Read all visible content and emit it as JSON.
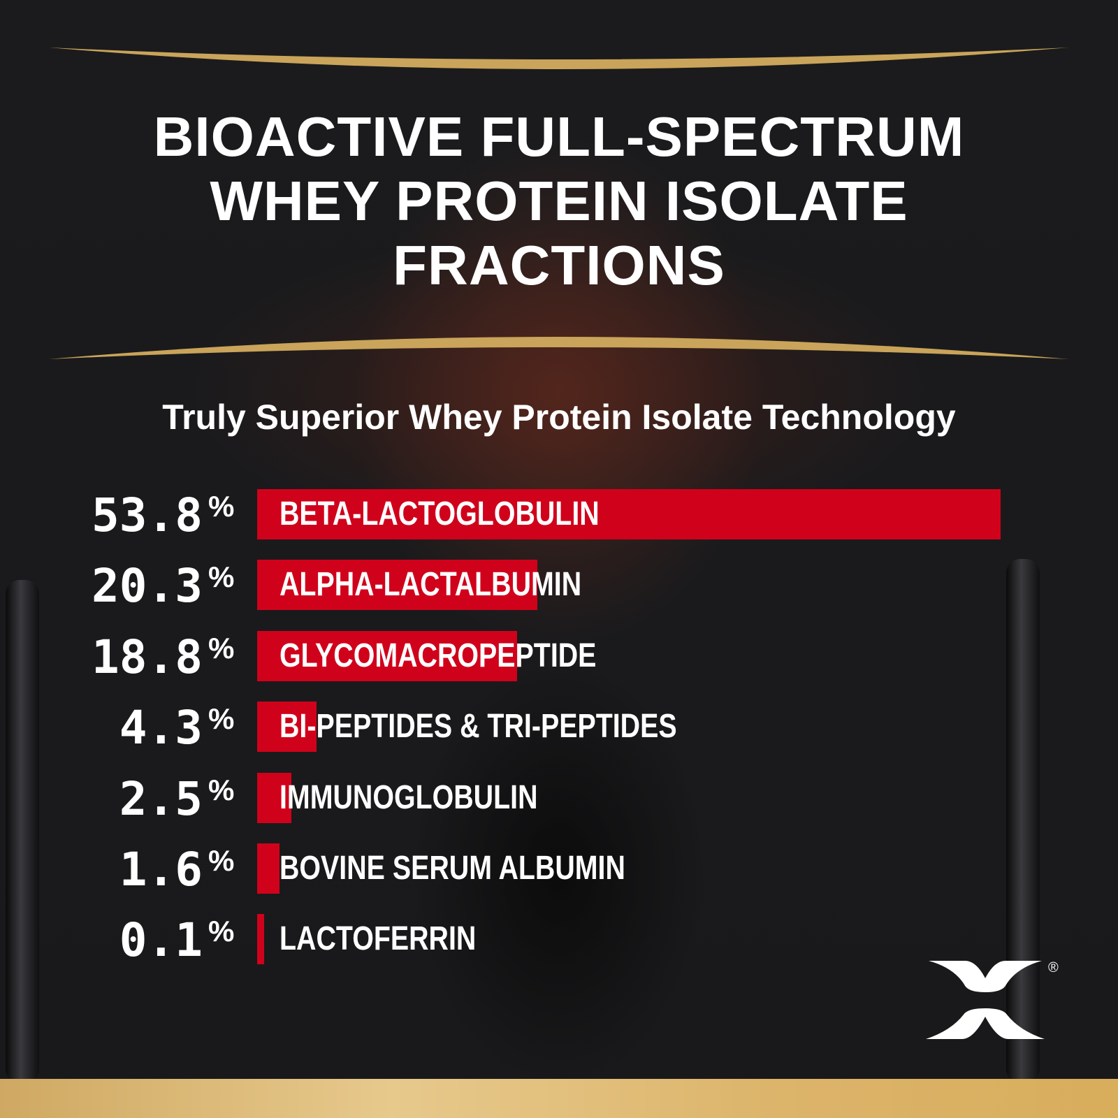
{
  "title_lines": [
    "BIOACTIVE FULL-SPECTRUM",
    "WHEY PROTEIN ISOLATE",
    "FRACTIONS"
  ],
  "subtitle": "Truly Superior Whey Protein Isolate Technology",
  "colors": {
    "bar": "#d0021b",
    "gold": "#d8b066",
    "text": "#ffffff",
    "background": "#1a1a1c"
  },
  "logo": {
    "icon": "x-logo",
    "registered": "®"
  },
  "chart_data": {
    "type": "bar",
    "orientation": "horizontal",
    "categories": [
      "BETA-LACTOGLOBULIN",
      "ALPHA-LACTALBUMIN",
      "GLYCOMACROPEPTIDE",
      "BI-PEPTIDES & TRI-PEPTIDES",
      "IMMUNOGLOBULIN",
      "BOVINE SERUM ALBUMIN",
      "LACTOFERRIN"
    ],
    "values": [
      53.8,
      20.3,
      18.8,
      4.3,
      2.5,
      1.6,
      0.1
    ],
    "value_labels": [
      "53.8",
      "20.3",
      "18.8",
      "4.3",
      "2.5",
      "1.6",
      "0.1"
    ],
    "unit": "%",
    "grid": false
  }
}
